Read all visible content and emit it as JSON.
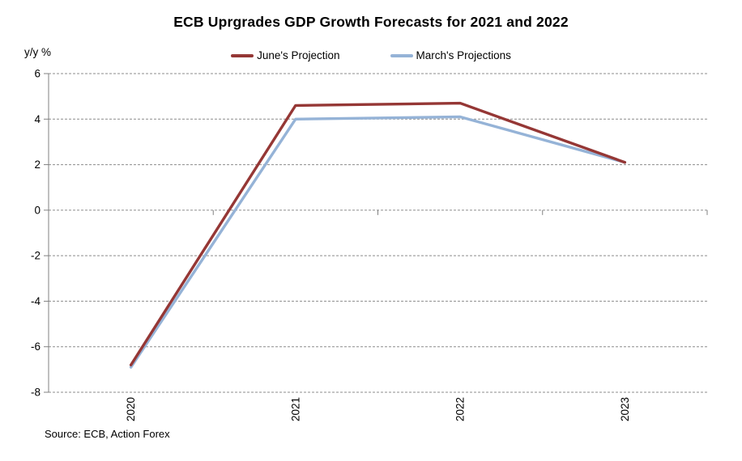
{
  "chart": {
    "title": "ECB Uprgrades GDP Growth Forecasts for 2021 and 2022",
    "source": "Source: ECB, Action Forex"
  },
  "chart_data": {
    "type": "line",
    "title": "ECB Uprgrades GDP Growth Forecasts for 2021 and 2022",
    "xlabel": "",
    "ylabel": "y/y %",
    "categories": [
      "2020",
      "2021",
      "2022",
      "2023"
    ],
    "series": [
      {
        "name": "June's Projection",
        "color": "#953735",
        "values": [
          -6.8,
          4.6,
          4.7,
          2.1
        ]
      },
      {
        "name": "March's Projections",
        "color": "#95B3D7",
        "values": [
          -6.9,
          4.0,
          4.1,
          2.1
        ]
      }
    ],
    "ylim": [
      -8,
      6
    ],
    "yticks": [
      6,
      4,
      2,
      0,
      -2,
      -4,
      -6,
      -8
    ],
    "grid": "horizontal-dashed",
    "legend_position": "top-center",
    "axis_color": "#808080",
    "gridline_color": "#8c8c8c"
  }
}
